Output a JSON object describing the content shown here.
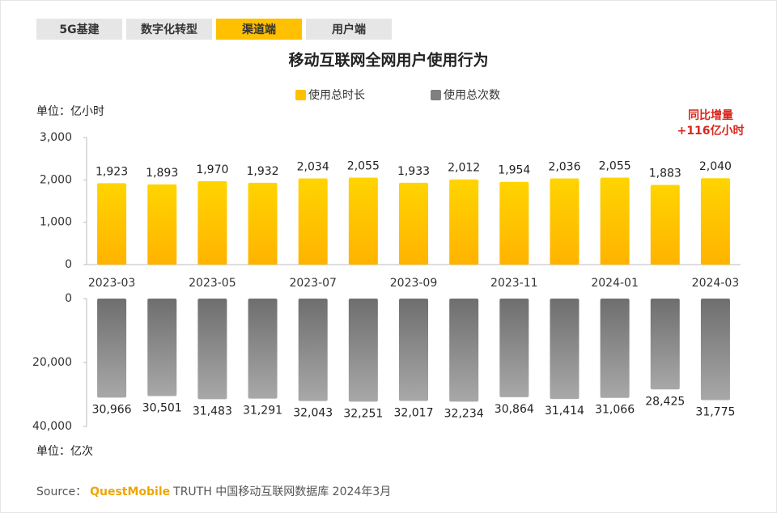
{
  "tabs": [
    "5G基建",
    "数字化转型",
    "渠道端",
    "用户端"
  ],
  "active_tab": 2,
  "source": {
    "prefix": "Source：",
    "brand": "QuestMobile",
    "text": "TRUTH 中国移动互联网数据库 2024年3月"
  },
  "chart_data": [
    {
      "type": "bar",
      "title": "移动互联网全网用户使用行为",
      "y_label": "单位：亿小时",
      "annotation": [
        "同比增量",
        "+116亿小时"
      ],
      "categories": [
        "2023-03",
        null,
        "2023-05",
        null,
        "2023-07",
        null,
        "2023-09",
        null,
        "2023-11",
        null,
        "2024-01",
        null,
        "2024-03"
      ],
      "series": [
        {
          "name": "使用总时长",
          "color": "#ffc000",
          "values": [
            1923,
            1893,
            1970,
            1932,
            2034,
            2055,
            1933,
            2012,
            1954,
            2036,
            2055,
            1883,
            2040
          ],
          "value_labels": [
            "1,923",
            "1,893",
            "1,970",
            "1,932",
            "2,034",
            "2,055",
            "1,933",
            "2,012",
            "1,954",
            "2,036",
            "2,055",
            "1,883",
            "2,040"
          ]
        }
      ],
      "ylim": [
        0,
        3000
      ],
      "yticks": [
        0,
        {
          "value": 1000,
          "label": "1,000"
        },
        {
          "value": 2000,
          "label": "2,000"
        },
        {
          "value": 3000,
          "label": "3,000"
        }
      ]
    },
    {
      "type": "bar",
      "y_label": "单位：亿次",
      "y_inverted": true,
      "series": [
        {
          "name": "使用总次数",
          "color": "#808080",
          "values": [
            30966,
            30501,
            31483,
            31291,
            32043,
            32251,
            32017,
            32234,
            30864,
            31414,
            31066,
            28425,
            31775
          ],
          "value_labels": [
            "30,966",
            "30,501",
            "31,483",
            "31,291",
            "32,043",
            "32,251",
            "32,017",
            "32,234",
            "30,864",
            "31,414",
            "31,066",
            "28,425",
            "31,775"
          ]
        }
      ],
      "ylim": [
        0,
        40000
      ],
      "yticks": [
        0,
        {
          "value": 20000,
          "label": "20,000"
        },
        {
          "value": 40000,
          "label": "40,000"
        }
      ]
    }
  ]
}
